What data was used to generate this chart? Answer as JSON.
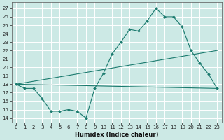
{
  "title": "",
  "xlabel": "Humidex (Indice chaleur)",
  "bg_color": "#cce9e5",
  "grid_color": "#ffffff",
  "line_color": "#1a7a6e",
  "xlim": [
    -0.5,
    23.5
  ],
  "ylim": [
    13.5,
    27.7
  ],
  "yticks": [
    14,
    15,
    16,
    17,
    18,
    19,
    20,
    21,
    22,
    23,
    24,
    25,
    26,
    27
  ],
  "xticks": [
    0,
    1,
    2,
    3,
    4,
    5,
    6,
    7,
    8,
    9,
    10,
    11,
    12,
    13,
    14,
    15,
    16,
    17,
    18,
    19,
    20,
    21,
    22,
    23
  ],
  "line1_x": [
    0,
    1,
    2,
    3,
    4,
    5,
    6,
    7,
    8,
    9,
    10,
    11,
    12,
    13,
    14,
    15,
    16,
    17,
    18,
    19,
    20,
    21,
    22,
    23
  ],
  "line1_y": [
    18.0,
    17.5,
    17.5,
    16.3,
    14.8,
    14.8,
    15.0,
    14.8,
    14.0,
    17.5,
    19.3,
    21.6,
    23.0,
    24.5,
    24.3,
    25.5,
    27.0,
    26.0,
    26.0,
    24.8,
    22.0,
    20.5,
    19.2,
    17.5
  ],
  "line2_x": [
    0,
    23
  ],
  "line2_y": [
    18.0,
    22.0
  ],
  "line3_x": [
    0,
    23
  ],
  "line3_y": [
    18.0,
    17.5
  ],
  "xlabel_fontsize": 6,
  "tick_fontsize": 5
}
